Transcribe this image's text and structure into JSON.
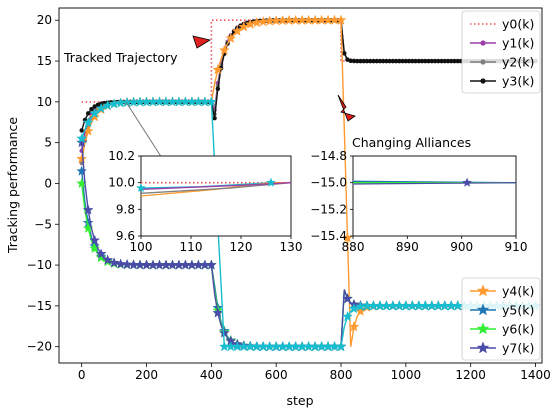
{
  "chart_data": {
    "type": "line",
    "xlabel": "step",
    "ylabel": "Tracking performance",
    "xlim": [
      -70,
      1420
    ],
    "ylim": [
      -22,
      21.5
    ],
    "xticks": [
      0,
      200,
      400,
      600,
      800,
      1000,
      1200,
      1400
    ],
    "yticks": [
      -20,
      -15,
      -10,
      -5,
      0,
      5,
      10,
      15,
      20
    ],
    "annotations": [
      {
        "name": "tracked-trajectory",
        "text": "Tracked Trajectory",
        "arrow_to": [
          405,
          18.3
        ]
      },
      {
        "name": "changing-alliances",
        "text": "Changing Alliances",
        "arrow_to": [
          800,
          15.2
        ]
      }
    ],
    "legends": [
      {
        "placement": "top-right",
        "entries": [
          "y0(k)",
          "y1(k)",
          "y2(k)",
          "y3(k)"
        ]
      },
      {
        "placement": "bottom-right",
        "entries": [
          "y4(k)",
          "y5(k)",
          "y6(k)",
          "y7(k)"
        ]
      }
    ],
    "series": [
      {
        "name": "y0(k)",
        "color": "#f05050",
        "style": "dotted",
        "marker": "none",
        "points": [
          [
            0,
            10
          ],
          [
            400,
            10
          ],
          [
            400,
            20
          ],
          [
            800,
            20
          ],
          [
            800,
            15
          ],
          [
            1400,
            15
          ]
        ]
      },
      {
        "name": "y1(k)",
        "color": "#9a3fa8",
        "style": "solid",
        "marker": "dot",
        "group": "positive",
        "start": 4.0,
        "dip": 9.0
      },
      {
        "name": "y2(k)",
        "color": "#7f7f7f",
        "style": "solid",
        "marker": "dot",
        "group": "positive",
        "start": 2.5,
        "dip": 8.5
      },
      {
        "name": "y3(k)",
        "color": "#111111",
        "style": "solid",
        "marker": "dot",
        "group": "positive",
        "start": 6.5,
        "dip": 8.0
      },
      {
        "name": "y4(k)",
        "color": "#ff9a30",
        "style": "solid",
        "marker": "star",
        "group": "switch",
        "start": 3.0
      },
      {
        "name": "y5(k)",
        "color": "#1f77b4",
        "style": "solid",
        "marker": "star",
        "group": "negative",
        "start": 1.5,
        "bump": -12.5
      },
      {
        "name": "y6(k)",
        "color": "#33ee33",
        "style": "solid",
        "marker": "star",
        "group": "negative",
        "start": 0.0,
        "bump": -13.0
      },
      {
        "name": "y7(k)",
        "color": "#4a4aa8",
        "style": "solid",
        "marker": "star",
        "group": "negative",
        "start": 5.0,
        "bump": -13.5
      },
      {
        "name": "y-cyan",
        "color": "#17becf",
        "style": "solid",
        "marker": "star",
        "group": "cyan",
        "start": 5.5
      }
    ],
    "insets": [
      {
        "name": "inset-left",
        "xlim": [
          100,
          130
        ],
        "ylim": [
          9.6,
          10.2
        ],
        "xticks": [
          100,
          110,
          120,
          130
        ],
        "yticks": [
          9.6,
          9.8,
          10.0,
          10.2
        ],
        "lines": [
          {
            "color": "#f05050",
            "style": "dotted",
            "points": [
              [
                100,
                10
              ],
              [
                130,
                10
              ]
            ]
          },
          {
            "color": "#17becf",
            "style": "solid",
            "points": [
              [
                100,
                9.96
              ],
              [
                112,
                9.97
              ],
              [
                126,
                10.0
              ],
              [
                130,
                10.0
              ]
            ]
          },
          {
            "color": "#ff9a30",
            "style": "solid",
            "points": [
              [
                100,
                9.9
              ],
              [
                115,
                9.95
              ],
              [
                126,
                10.0
              ],
              [
                130,
                10.0
              ]
            ]
          },
          {
            "color": "#7f7f7f",
            "style": "solid",
            "points": [
              [
                100,
                9.92
              ],
              [
                118,
                9.96
              ],
              [
                130,
                10.0
              ]
            ]
          },
          {
            "color": "#9a3fa8",
            "style": "solid",
            "points": [
              [
                100,
                9.95
              ],
              [
                120,
                9.98
              ],
              [
                130,
                10.0
              ]
            ]
          }
        ],
        "star_at": [
          [
            126,
            10.0,
            "#17becf"
          ],
          [
            100,
            9.96,
            "#17becf"
          ]
        ]
      },
      {
        "name": "inset-right",
        "xlim": [
          880,
          910
        ],
        "ylim": [
          -15.4,
          -14.8
        ],
        "xticks": [
          880,
          890,
          900,
          910
        ],
        "yticks": [
          -14.8,
          -15.0,
          -15.2,
          -15.4
        ],
        "lines": [
          {
            "color": "#1f77b4",
            "style": "solid",
            "points": [
              [
                880,
                -14.99
              ],
              [
                910,
                -15.0
              ]
            ]
          },
          {
            "color": "#33ee33",
            "style": "solid",
            "points": [
              [
                880,
                -15.0
              ],
              [
                910,
                -15.0
              ]
            ]
          },
          {
            "color": "#4a4aa8",
            "style": "solid",
            "points": [
              [
                880,
                -15.01
              ],
              [
                910,
                -15.0
              ]
            ]
          }
        ],
        "star_at": [
          [
            901,
            -15.0,
            "#4a4aa8"
          ]
        ]
      }
    ]
  }
}
